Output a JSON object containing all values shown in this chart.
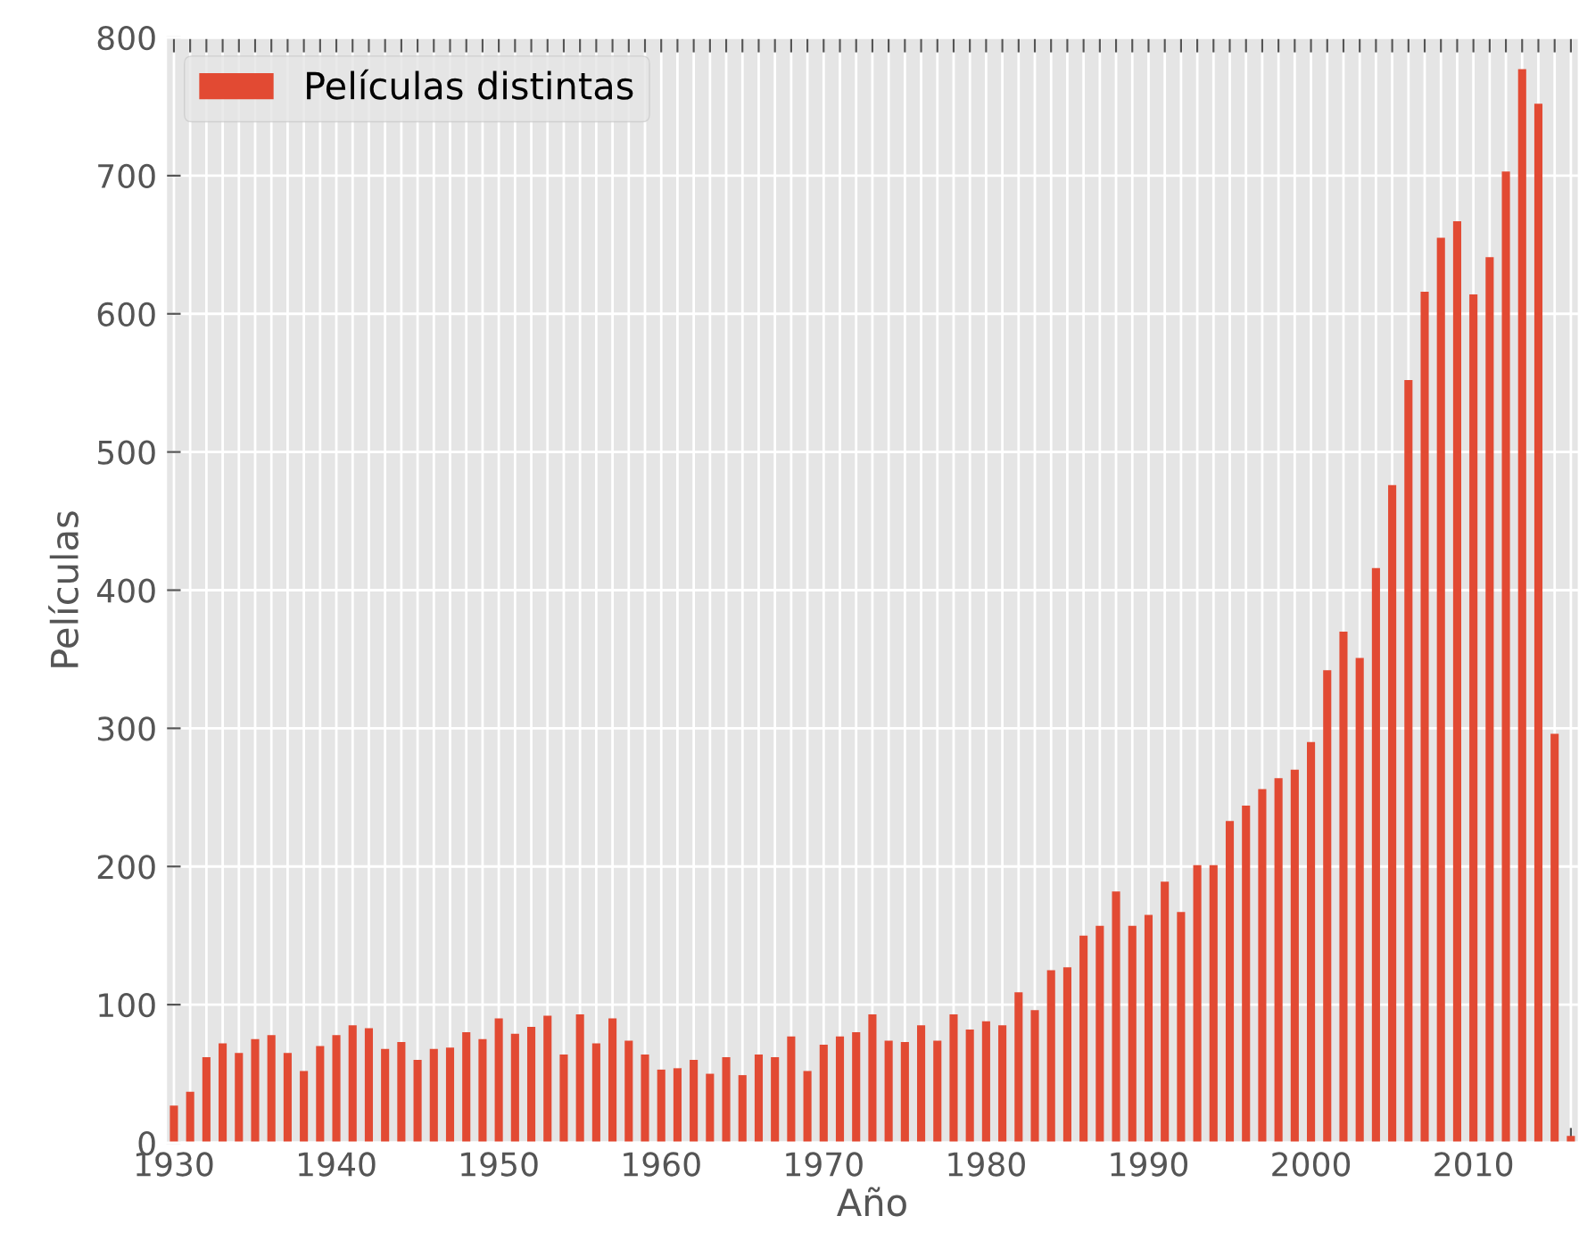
{
  "chart_data": {
    "type": "bar",
    "xlabel": "Año",
    "ylabel": "Películas",
    "categories": [
      "1930",
      null,
      null,
      null,
      null,
      null,
      null,
      null,
      null,
      null,
      "1940",
      null,
      null,
      null,
      null,
      null,
      null,
      null,
      null,
      null,
      "1950",
      null,
      null,
      null,
      null,
      null,
      null,
      null,
      null,
      null,
      "1960",
      null,
      null,
      null,
      null,
      null,
      null,
      null,
      null,
      null,
      "1970",
      null,
      null,
      null,
      null,
      null,
      null,
      null,
      null,
      null,
      "1980",
      null,
      null,
      null,
      null,
      null,
      null,
      null,
      null,
      null,
      "1990",
      null,
      null,
      null,
      null,
      null,
      null,
      null,
      null,
      null,
      "2000",
      null,
      null,
      null,
      null,
      null,
      null,
      null,
      null,
      null,
      "2010",
      null,
      null,
      null,
      null,
      null,
      null
    ],
    "series": [
      {
        "name": "Películas distintas",
        "color": "#e24a33",
        "values": [
          27,
          37,
          62,
          72,
          65,
          75,
          78,
          65,
          52,
          70,
          78,
          85,
          83,
          68,
          73,
          60,
          68,
          69,
          80,
          75,
          90,
          79,
          84,
          92,
          64,
          93,
          72,
          90,
          74,
          64,
          53,
          54,
          60,
          50,
          62,
          49,
          64,
          62,
          77,
          52,
          71,
          77,
          80,
          93,
          74,
          73,
          85,
          74,
          93,
          82,
          88,
          85,
          109,
          96,
          125,
          127,
          150,
          157,
          182,
          157,
          165,
          189,
          167,
          201,
          201,
          233,
          244,
          256,
          264,
          270,
          290,
          342,
          370,
          351,
          416,
          476,
          552,
          616,
          655,
          667,
          614,
          641,
          703,
          777,
          752,
          296,
          5
        ]
      }
    ],
    "ylim": [
      0,
      800
    ],
    "yticks": [
      0,
      100,
      200,
      300,
      400,
      500,
      600,
      700,
      800
    ],
    "grid": true,
    "legend": "top left"
  }
}
